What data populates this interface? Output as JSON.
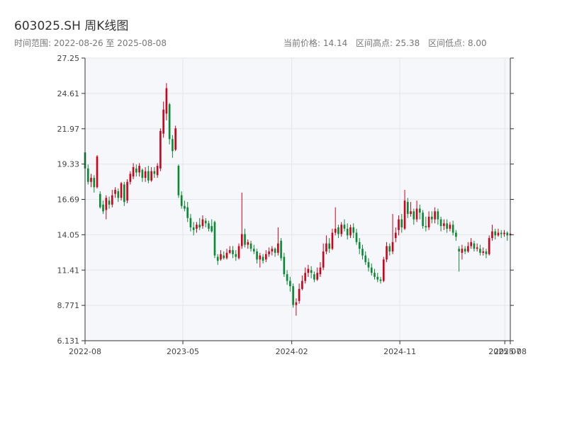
{
  "header": {
    "title": "603025.SH 周K线图",
    "range_label": "时间范围: 2022-08-26 至 2025-08-08",
    "current_price_label": "当前价格: 14.14",
    "high_label": "区间高点: 25.38",
    "low_label": "区间低点: 8.00"
  },
  "colors": {
    "up": "#d0021b",
    "down": "#0a8a35",
    "grid": "#e3e6ea",
    "plot_bg": "#f5f7fa",
    "axis": "#333333"
  },
  "chart_data": {
    "type": "candlestick",
    "title": "603025.SH 周K线图",
    "ylim": [
      6.131,
      27.25
    ],
    "yticks": [
      6.131,
      8.771,
      11.41,
      14.05,
      16.69,
      19.33,
      21.97,
      24.61,
      27.25
    ],
    "ytick_labels": [
      "6.131",
      "8.771",
      "11.41",
      "14.05",
      "16.69",
      "19.33",
      "21.97",
      "24.61",
      "27.25"
    ],
    "xlim": [
      "2022-08-26",
      "2025-08-08"
    ],
    "xticks": [
      {
        "date": "2022-08-26",
        "label": "2022-08"
      },
      {
        "date": "2023-05-01",
        "label": "2023-05"
      },
      {
        "date": "2024-02-01",
        "label": "2024-02"
      },
      {
        "date": "2024-11-01",
        "label": "2024-11"
      },
      {
        "date": "2025-07-25",
        "label": "2025-07"
      },
      {
        "date": "2025-08-08",
        "label": "2025-08"
      }
    ],
    "grid": true,
    "ohlc": [
      [
        20.2,
        19.0,
        20.4,
        18.9
      ],
      [
        19.0,
        18.0,
        19.3,
        17.8
      ],
      [
        18.0,
        18.3,
        18.6,
        17.6
      ],
      [
        18.3,
        17.6,
        18.5,
        17.2
      ],
      [
        17.6,
        19.9,
        20.0,
        17.5
      ],
      [
        17.1,
        16.1,
        17.3,
        16.0
      ],
      [
        16.3,
        15.8,
        16.6,
        15.6
      ],
      [
        15.9,
        16.8,
        17.0,
        15.2
      ],
      [
        16.6,
        16.3,
        16.9,
        16.0
      ],
      [
        16.3,
        17.0,
        17.4,
        16.1
      ],
      [
        17.1,
        17.4,
        17.6,
        16.8
      ],
      [
        17.3,
        16.8,
        17.5,
        16.5
      ],
      [
        16.8,
        17.9,
        18.0,
        16.6
      ],
      [
        17.8,
        16.5,
        18.0,
        16.2
      ],
      [
        16.6,
        18.0,
        18.2,
        16.4
      ],
      [
        18.0,
        18.6,
        18.8,
        17.8
      ],
      [
        18.4,
        19.1,
        19.4,
        18.2
      ],
      [
        19.0,
        18.7,
        19.3,
        18.4
      ],
      [
        18.7,
        19.2,
        19.4,
        18.4
      ],
      [
        18.9,
        18.3,
        19.0,
        18.0
      ],
      [
        18.3,
        18.8,
        19.1,
        18.0
      ],
      [
        18.8,
        18.1,
        19.2,
        17.9
      ],
      [
        18.1,
        18.8,
        19.1,
        18.0
      ],
      [
        18.8,
        18.6,
        19.1,
        18.3
      ],
      [
        18.5,
        19.2,
        19.4,
        18.3
      ],
      [
        19.0,
        21.8,
        22.0,
        18.8
      ],
      [
        21.6,
        23.4,
        24.0,
        21.3
      ],
      [
        23.1,
        25.0,
        25.38,
        22.6
      ],
      [
        23.8,
        21.2,
        23.9,
        20.8
      ],
      [
        21.2,
        20.3,
        21.5,
        19.8
      ],
      [
        20.4,
        22.0,
        22.2,
        20.3
      ],
      [
        19.2,
        17.0,
        19.3,
        16.8
      ],
      [
        17.0,
        16.2,
        17.3,
        16.0
      ],
      [
        16.2,
        16.0,
        16.6,
        15.8
      ],
      [
        16.1,
        15.3,
        16.5,
        15.0
      ],
      [
        15.3,
        14.6,
        15.6,
        14.3
      ],
      [
        14.6,
        14.4,
        15.0,
        14.0
      ],
      [
        14.5,
        14.8,
        15.0,
        14.2
      ],
      [
        14.8,
        14.6,
        15.3,
        14.4
      ],
      [
        14.7,
        15.2,
        15.5,
        14.5
      ],
      [
        15.1,
        14.9,
        15.3,
        14.6
      ],
      [
        14.9,
        14.5,
        15.1,
        14.3
      ],
      [
        14.7,
        14.3,
        15.2,
        14.2
      ],
      [
        15.0,
        12.5,
        15.1,
        12.3
      ],
      [
        12.4,
        12.1,
        12.6,
        11.8
      ],
      [
        12.2,
        12.6,
        12.9,
        12.1
      ],
      [
        12.5,
        12.3,
        12.8,
        12.2
      ],
      [
        12.3,
        12.7,
        13.0,
        12.2
      ],
      [
        12.7,
        12.9,
        13.2,
        12.6
      ],
      [
        12.9,
        12.6,
        13.2,
        12.3
      ],
      [
        12.6,
        12.4,
        12.9,
        12.1
      ],
      [
        12.3,
        13.2,
        13.4,
        12.2
      ],
      [
        13.2,
        14.1,
        17.2,
        13.0
      ],
      [
        14.1,
        13.3,
        14.5,
        13.1
      ],
      [
        13.3,
        13.5,
        13.7,
        13.0
      ],
      [
        13.4,
        13.0,
        13.6,
        12.8
      ],
      [
        13.0,
        12.8,
        13.3,
        12.6
      ],
      [
        12.8,
        12.2,
        13.0,
        11.9
      ],
      [
        12.2,
        12.5,
        12.7,
        11.6
      ],
      [
        12.4,
        12.1,
        12.6,
        11.9
      ],
      [
        12.2,
        12.6,
        12.9,
        12.0
      ],
      [
        12.6,
        12.8,
        13.1,
        12.4
      ],
      [
        12.8,
        13.0,
        13.2,
        12.5
      ],
      [
        13.0,
        12.7,
        13.1,
        12.4
      ],
      [
        12.7,
        13.4,
        14.6,
        12.5
      ],
      [
        13.6,
        12.3,
        13.8,
        12.1
      ],
      [
        12.4,
        11.1,
        12.7,
        10.9
      ],
      [
        11.1,
        10.6,
        11.4,
        10.3
      ],
      [
        10.6,
        10.2,
        10.9,
        9.8
      ],
      [
        10.2,
        8.8,
        10.4,
        8.6
      ],
      [
        8.8,
        9.0,
        9.3,
        8.0
      ],
      [
        9.1,
        10.0,
        10.4,
        8.9
      ],
      [
        10.0,
        10.6,
        11.0,
        9.9
      ],
      [
        10.6,
        11.2,
        11.6,
        10.4
      ],
      [
        11.2,
        11.5,
        11.8,
        10.9
      ],
      [
        11.4,
        11.2,
        11.7,
        10.8
      ],
      [
        11.1,
        10.7,
        11.3,
        10.5
      ],
      [
        10.7,
        11.2,
        11.6,
        10.6
      ],
      [
        11.1,
        11.6,
        12.0,
        10.9
      ],
      [
        11.6,
        12.8,
        13.4,
        11.4
      ],
      [
        12.8,
        13.4,
        14.0,
        12.6
      ],
      [
        13.4,
        13.0,
        13.8,
        12.7
      ],
      [
        13.0,
        14.2,
        14.5,
        12.9
      ],
      [
        14.2,
        14.5,
        16.1,
        14.0
      ],
      [
        14.6,
        14.1,
        14.8,
        13.8
      ],
      [
        14.1,
        14.8,
        15.0,
        13.9
      ],
      [
        14.8,
        14.5,
        15.2,
        14.3
      ],
      [
        14.5,
        14.0,
        14.9,
        13.7
      ],
      [
        14.0,
        14.6,
        14.8,
        13.8
      ],
      [
        14.6,
        14.2,
        14.9,
        13.8
      ],
      [
        14.2,
        13.5,
        14.5,
        13.3
      ],
      [
        13.5,
        13.0,
        13.8,
        12.6
      ],
      [
        13.0,
        12.5,
        13.3,
        12.2
      ],
      [
        12.5,
        12.0,
        12.8,
        11.8
      ],
      [
        12.0,
        11.6,
        12.3,
        11.3
      ],
      [
        11.6,
        11.2,
        11.9,
        11.0
      ],
      [
        11.2,
        10.9,
        11.5,
        10.7
      ],
      [
        10.9,
        10.7,
        11.2,
        10.5
      ],
      [
        10.7,
        10.6,
        10.9,
        10.4
      ],
      [
        10.6,
        12.2,
        12.4,
        10.5
      ],
      [
        12.2,
        13.2,
        13.5,
        12.0
      ],
      [
        13.2,
        12.8,
        13.4,
        12.5
      ],
      [
        12.8,
        13.5,
        15.6,
        12.6
      ],
      [
        13.8,
        14.2,
        14.6,
        13.5
      ],
      [
        14.4,
        15.2,
        15.5,
        14.0
      ],
      [
        15.2,
        14.6,
        15.6,
        14.2
      ],
      [
        14.5,
        16.6,
        17.4,
        14.4
      ],
      [
        16.5,
        15.6,
        16.8,
        15.3
      ],
      [
        15.6,
        15.8,
        16.5,
        15.4
      ],
      [
        15.8,
        15.2,
        16.0,
        14.8
      ],
      [
        15.2,
        16.0,
        16.6,
        15.0
      ],
      [
        16.0,
        15.7,
        16.3,
        15.2
      ],
      [
        15.7,
        14.7,
        15.9,
        14.5
      ],
      [
        14.7,
        14.6,
        15.4,
        14.3
      ],
      [
        14.6,
        15.4,
        15.8,
        14.4
      ],
      [
        15.4,
        15.2,
        15.8,
        14.9
      ],
      [
        15.2,
        15.8,
        16.1,
        14.9
      ],
      [
        15.8,
        15.2,
        16.0,
        14.8
      ],
      [
        15.2,
        14.7,
        15.4,
        14.3
      ],
      [
        14.7,
        14.9,
        15.2,
        14.4
      ],
      [
        14.9,
        14.5,
        15.2,
        14.2
      ],
      [
        14.5,
        14.8,
        15.0,
        14.3
      ],
      [
        14.8,
        14.2,
        15.1,
        14.0
      ],
      [
        14.2,
        13.9,
        14.4,
        13.6
      ],
      [
        13.0,
        12.8,
        13.2,
        11.3
      ],
      [
        12.7,
        13.0,
        13.3,
        12.2
      ],
      [
        13.0,
        12.8,
        13.2,
        12.6
      ],
      [
        12.8,
        13.2,
        13.5,
        12.7
      ],
      [
        13.2,
        13.5,
        13.8,
        13.0
      ],
      [
        13.4,
        13.0,
        13.6,
        12.8
      ],
      [
        13.0,
        13.1,
        13.4,
        12.8
      ],
      [
        13.0,
        12.7,
        13.3,
        12.5
      ],
      [
        12.7,
        12.8,
        13.1,
        12.5
      ],
      [
        12.8,
        12.6,
        13.0,
        12.3
      ],
      [
        12.6,
        13.8,
        14.0,
        12.5
      ],
      [
        13.8,
        14.3,
        14.8,
        13.6
      ],
      [
        14.3,
        14.0,
        14.5,
        13.7
      ],
      [
        14.0,
        14.2,
        14.5,
        13.9
      ],
      [
        14.2,
        14.1,
        14.4,
        13.8
      ],
      [
        14.1,
        14.2,
        14.4,
        13.9
      ],
      [
        14.2,
        14.0,
        14.3,
        13.6
      ],
      [
        14.0,
        14.14,
        14.8,
        13.8
      ]
    ]
  }
}
